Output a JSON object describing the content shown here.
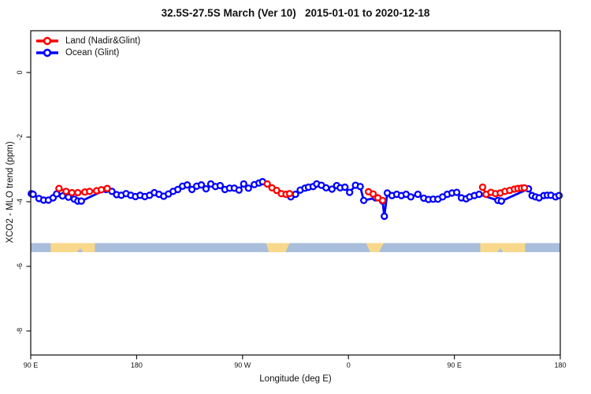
{
  "chart_data": {
    "type": "line",
    "title": "32.5S-27.5S March (Ver 10)   2015-01-01 to 2020-12-18",
    "xlabel": "Longitude (deg E)",
    "ylabel": "XCO2 - MLO trend (ppm)",
    "grid": false,
    "x_axis": {
      "min": 90,
      "max": 540,
      "ticks": [
        {
          "pos": 90,
          "label": "90 E"
        },
        {
          "pos": 180,
          "label": "180"
        },
        {
          "pos": 270,
          "label": "90 W"
        },
        {
          "pos": 360,
          "label": "0"
        },
        {
          "pos": 450,
          "label": "90 E"
        },
        {
          "pos": 540,
          "label": "180"
        }
      ]
    },
    "y_axis": {
      "min": -8.74,
      "max": 1.29,
      "ticks": [
        {
          "pos": 0,
          "label": "0"
        },
        {
          "pos": -2,
          "label": "-2"
        },
        {
          "pos": -4,
          "label": "-4"
        },
        {
          "pos": -6,
          "label": "-6"
        },
        {
          "pos": -8,
          "label": "-8"
        }
      ]
    },
    "legend": {
      "position": "top-left",
      "items": [
        {
          "label": "Land (Nadir&Glint)",
          "color": "#ff0000"
        },
        {
          "label": "Ocean (Glint)",
          "color": "#0000ff"
        }
      ]
    },
    "series": [
      {
        "name": "Land (Nadir&Glint)",
        "color": "#ff0000",
        "marker": "open-circle",
        "segments": [
          [
            [
              114,
              -3.59
            ],
            [
              120,
              -3.68
            ],
            [
              125,
              -3.72
            ],
            [
              130,
              -3.72
            ],
            [
              136,
              -3.7
            ],
            [
              140,
              -3.68
            ],
            [
              146,
              -3.66
            ],
            [
              150,
              -3.63
            ],
            [
              155,
              -3.59
            ]
          ],
          [
            [
              291,
              -3.45
            ],
            [
              295,
              -3.57
            ],
            [
              299,
              -3.65
            ],
            [
              303,
              -3.75
            ],
            [
              307,
              -3.77
            ],
            [
              310,
              -3.75
            ]
          ],
          [
            [
              377,
              -3.69
            ],
            [
              381,
              -3.76
            ],
            [
              385,
              -3.88
            ],
            [
              389,
              -3.96
            ]
          ],
          [
            [
              474,
              -3.55
            ],
            [
              477,
              -3.77
            ],
            [
              481,
              -3.71
            ],
            [
              485,
              -3.75
            ],
            [
              489,
              -3.73
            ],
            [
              493,
              -3.68
            ],
            [
              497,
              -3.65
            ],
            [
              501,
              -3.61
            ],
            [
              504,
              -3.59
            ],
            [
              507,
              -3.58
            ],
            [
              509.5,
              -3.57
            ]
          ]
        ]
      },
      {
        "name": "Ocean (Glint)",
        "color": "#0000ff",
        "marker": "open-circle",
        "segments": [
          [
            [
              90.5,
              -3.75
            ],
            [
              92,
              -3.77
            ],
            [
              97,
              -3.9
            ],
            [
              101,
              -3.95
            ],
            [
              105,
              -3.95
            ],
            [
              109,
              -3.88
            ],
            [
              112,
              -3.76
            ],
            [
              117,
              -3.82
            ],
            [
              122,
              -3.86
            ],
            [
              127,
              -3.92
            ],
            [
              130,
              -3.98
            ],
            [
              133,
              -3.98
            ],
            [
              154,
              -3.62
            ],
            [
              159,
              -3.68
            ],
            [
              163,
              -3.78
            ],
            [
              167,
              -3.8
            ],
            [
              171,
              -3.75
            ],
            [
              175,
              -3.8
            ],
            [
              179,
              -3.84
            ],
            [
              183,
              -3.8
            ],
            [
              187,
              -3.84
            ],
            [
              191,
              -3.8
            ],
            [
              195,
              -3.72
            ],
            [
              199,
              -3.77
            ],
            [
              203,
              -3.83
            ],
            [
              207,
              -3.76
            ],
            [
              211,
              -3.68
            ],
            [
              215,
              -3.62
            ],
            [
              219,
              -3.52
            ],
            [
              223,
              -3.48
            ],
            [
              227,
              -3.62
            ],
            [
              231,
              -3.52
            ],
            [
              235,
              -3.48
            ],
            [
              239,
              -3.6
            ],
            [
              243,
              -3.45
            ],
            [
              247,
              -3.53
            ],
            [
              251,
              -3.5
            ],
            [
              255,
              -3.62
            ],
            [
              259,
              -3.58
            ],
            [
              263,
              -3.58
            ],
            [
              267,
              -3.64
            ],
            [
              271,
              -3.45
            ],
            [
              275,
              -3.58
            ],
            [
              280,
              -3.47
            ],
            [
              284,
              -3.42
            ],
            [
              287,
              -3.38
            ],
            [
              311,
              -3.85
            ],
            [
              315,
              -3.77
            ],
            [
              319,
              -3.64
            ],
            [
              323,
              -3.58
            ],
            [
              326,
              -3.55
            ],
            [
              330,
              -3.53
            ],
            [
              333,
              -3.45
            ],
            [
              337,
              -3.49
            ],
            [
              341,
              -3.57
            ],
            [
              346,
              -3.61
            ],
            [
              350,
              -3.5
            ],
            [
              353,
              -3.57
            ],
            [
              357,
              -3.55
            ],
            [
              361,
              -3.71
            ],
            [
              366,
              -3.49
            ],
            [
              370,
              -3.53
            ],
            [
              373,
              -3.96
            ],
            [
              383,
              -3.88
            ],
            [
              389,
              -3.98
            ],
            [
              390.5,
              -4.45
            ],
            [
              393,
              -3.73
            ],
            [
              397,
              -3.81
            ],
            [
              401,
              -3.77
            ],
            [
              405,
              -3.81
            ],
            [
              409,
              -3.77
            ],
            [
              413,
              -3.85
            ],
            [
              419,
              -3.77
            ],
            [
              424,
              -3.89
            ],
            [
              428,
              -3.93
            ],
            [
              432,
              -3.92
            ],
            [
              436,
              -3.92
            ],
            [
              440,
              -3.85
            ],
            [
              444,
              -3.77
            ],
            [
              448,
              -3.73
            ],
            [
              452,
              -3.71
            ],
            [
              456,
              -3.88
            ],
            [
              460,
              -3.91
            ],
            [
              463,
              -3.85
            ],
            [
              467,
              -3.81
            ],
            [
              471,
              -3.77
            ],
            [
              487,
              -3.96
            ],
            [
              490,
              -3.98
            ],
            [
              513,
              -3.6
            ],
            [
              516,
              -3.81
            ],
            [
              519,
              -3.85
            ],
            [
              522,
              -3.88
            ],
            [
              526,
              -3.81
            ],
            [
              529,
              -3.8
            ],
            [
              532,
              -3.8
            ],
            [
              536,
              -3.85
            ],
            [
              539,
              -3.81
            ]
          ]
        ]
      }
    ],
    "map_strip": {
      "value_top": -5.28,
      "value_bottom": -5.56,
      "ocean_color": "#a9bedb",
      "land_color": "#f8d88a",
      "land_patches": [
        {
          "from": 107,
          "to": 144.5,
          "notch": [
            129.5,
            134.5
          ]
        },
        {
          "from": 290,
          "to": 310,
          "bottom_from": 292.5,
          "bottom_to": 306.5
        },
        {
          "from": 375,
          "to": 390,
          "bottom_from": 378.5,
          "bottom_to": 386
        },
        {
          "from": 472,
          "to": 510,
          "notch": [
            486.5,
            491.5
          ]
        }
      ]
    }
  }
}
